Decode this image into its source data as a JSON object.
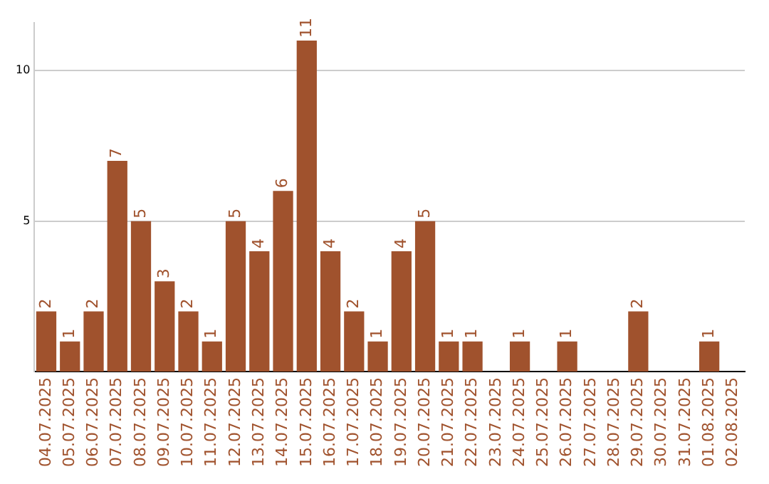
{
  "chart_data": {
    "type": "bar",
    "categories": [
      "04.07.2025",
      "05.07.2025",
      "06.07.2025",
      "07.07.2025",
      "08.07.2025",
      "09.07.2025",
      "10.07.2025",
      "11.07.2025",
      "12.07.2025",
      "13.07.2025",
      "14.07.2025",
      "15.07.2025",
      "16.07.2025",
      "17.07.2025",
      "18.07.2025",
      "19.07.2025",
      "20.07.2025",
      "21.07.2025",
      "22.07.2025",
      "23.07.2025",
      "24.07.2025",
      "25.07.2025",
      "26.07.2025",
      "27.07.2025",
      "28.07.2025",
      "29.07.2025",
      "30.07.2025",
      "31.07.2025",
      "01.08.2025",
      "02.08.2025"
    ],
    "values": [
      2,
      1,
      2,
      7,
      5,
      3,
      2,
      1,
      5,
      4,
      6,
      11,
      4,
      2,
      1,
      4,
      5,
      1,
      1,
      0,
      1,
      0,
      1,
      0,
      0,
      2,
      0,
      0,
      1,
      0
    ],
    "value_labels": [
      "2",
      "1",
      "2",
      "7",
      "5",
      "3",
      "2",
      "1",
      "5",
      "4",
      "6",
      "11",
      "4",
      "2",
      "1",
      "4",
      "5",
      "1",
      "1",
      null,
      "1",
      null,
      "1",
      null,
      null,
      "2",
      null,
      null,
      "1",
      null
    ],
    "color": "#a0522d",
    "ylim": [
      0,
      11.6
    ],
    "yticks": [
      5,
      10
    ],
    "grid": "y",
    "legend": false
  }
}
